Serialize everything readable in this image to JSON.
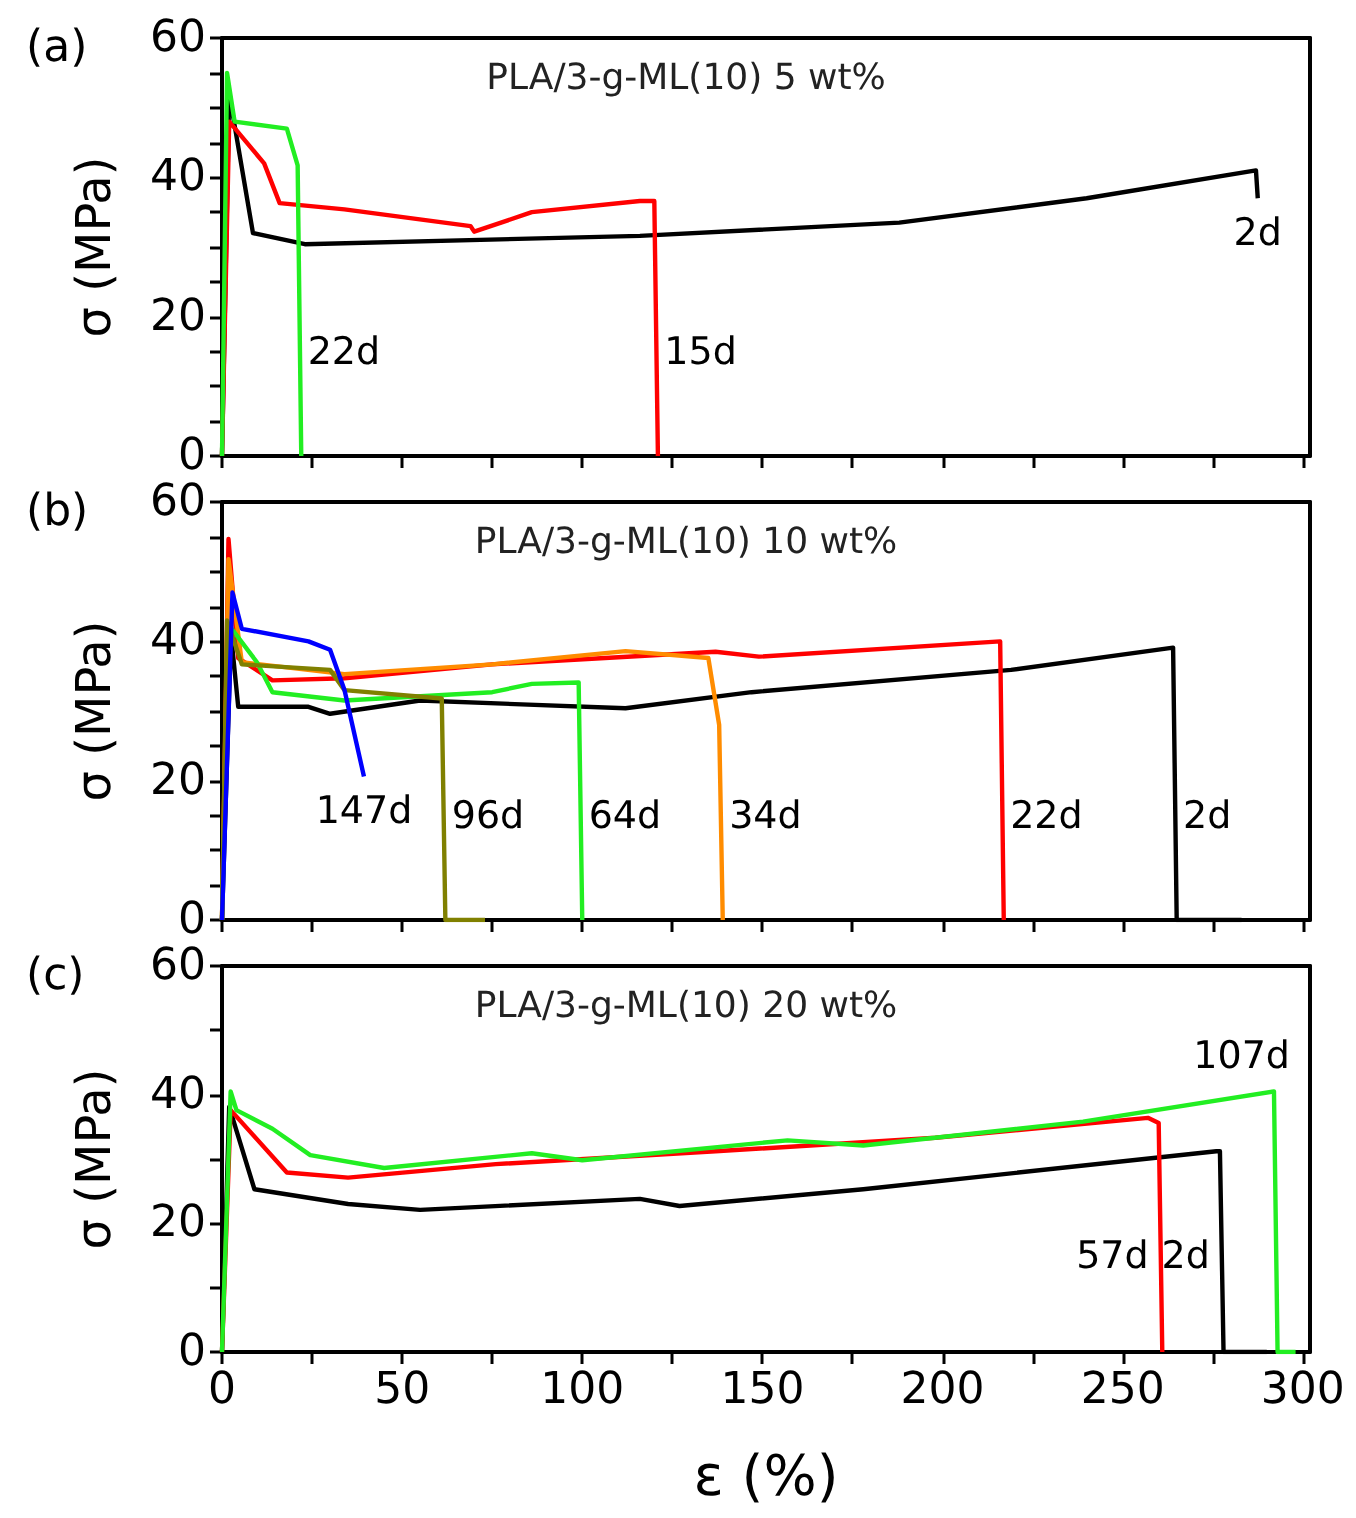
{
  "chart_data": [
    {
      "type": "line",
      "title": "(a)",
      "ylabel": "σ (MPa)",
      "marker": "none",
      "tick_labels": "y",
      "xlim": [
        0,
        302
      ],
      "xticks": [
        0,
        {
          "value": 25,
          "label": null
        },
        50,
        {
          "value": 75,
          "label": null
        },
        100,
        {
          "value": 125,
          "label": null
        },
        150,
        {
          "value": 175,
          "label": null
        },
        200,
        {
          "value": 225,
          "label": null
        },
        250,
        {
          "value": 275,
          "label": null
        },
        300
      ],
      "ylim": [
        0,
        60
      ],
      "yticks": [
        0,
        {
          "value": 5,
          "label": null
        },
        {
          "value": 10,
          "label": null
        },
        {
          "value": 15,
          "label": null
        },
        20,
        {
          "value": 25,
          "label": null
        },
        {
          "value": 30,
          "label": null
        },
        {
          "value": 35,
          "label": null
        },
        40,
        {
          "value": 45,
          "label": null
        },
        {
          "value": 50,
          "label": null
        },
        {
          "value": 55,
          "label": null
        },
        60
      ],
      "annotations": [
        "PLA/3-g-ML(10) 5 wt%"
      ],
      "series": [
        {
          "name": "2d",
          "color": "#000000",
          "x": [
            0,
            2,
            8.6,
            23,
            116,
            188,
            240,
            287,
            287.5
          ],
          "values": [
            0,
            52,
            32,
            30.4,
            31.6,
            33.5,
            37,
            41,
            37
          ]
        },
        {
          "name": "15d",
          "color": "#ff0000",
          "x": [
            0,
            2,
            11.7,
            16,
            34,
            69,
            70,
            86,
            116,
            120,
            121
          ],
          "values": [
            0,
            48,
            42,
            36.3,
            35.4,
            33,
            32.2,
            35,
            36.6,
            36.6,
            0
          ]
        },
        {
          "name": "22d",
          "color": "#22ee22",
          "x": [
            0,
            1.4,
            3.5,
            18,
            21,
            22
          ],
          "values": [
            0,
            55,
            48,
            47,
            41.7,
            0
          ]
        }
      ]
    },
    {
      "type": "line",
      "title": "(b)",
      "ylabel": "σ (MPa)",
      "marker": "none",
      "tick_labels": "y",
      "xlim": [
        0,
        302
      ],
      "xticks": [
        0,
        {
          "value": 25,
          "label": null
        },
        50,
        {
          "value": 75,
          "label": null
        },
        100,
        {
          "value": 125,
          "label": null
        },
        150,
        {
          "value": 175,
          "label": null
        },
        200,
        {
          "value": 225,
          "label": null
        },
        250,
        {
          "value": 275,
          "label": null
        },
        300
      ],
      "ylim": [
        0,
        60
      ],
      "yticks": [
        0,
        {
          "value": 5,
          "label": null
        },
        {
          "value": 10,
          "label": null
        },
        {
          "value": 15,
          "label": null
        },
        20,
        {
          "value": 25,
          "label": null
        },
        {
          "value": 30,
          "label": null
        },
        {
          "value": 35,
          "label": null
        },
        40,
        {
          "value": 45,
          "label": null
        },
        {
          "value": 50,
          "label": null
        },
        {
          "value": 55,
          "label": null
        },
        60
      ],
      "annotations": [
        "PLA/3-g-ML(10) 10 wt%"
      ],
      "series": [
        {
          "name": "2d",
          "color": "#000000",
          "x": [
            0,
            2.5,
            4.5,
            24,
            30,
            55,
            112,
            147,
            219,
            264,
            265,
            283
          ],
          "values": [
            0,
            41,
            30.6,
            30.6,
            29.6,
            31.5,
            30.4,
            32.7,
            35.9,
            39.1,
            0,
            0
          ]
        },
        {
          "name": "22d",
          "color": "#ff0000",
          "x": [
            0,
            1.8,
            4.5,
            14,
            34,
            75,
            137,
            149,
            216,
            217
          ],
          "values": [
            0,
            54.7,
            37.6,
            34.4,
            34.7,
            36.7,
            38.5,
            37.8,
            40,
            0
          ]
        },
        {
          "name": "34d",
          "color": "#ff8c00",
          "x": [
            0,
            1.8,
            5.5,
            34,
            75,
            112,
            135,
            138,
            139
          ],
          "values": [
            0,
            51.8,
            37,
            35.3,
            36.7,
            38.6,
            37.6,
            28,
            0
          ]
        },
        {
          "name": "64d",
          "color": "#22ee22",
          "x": [
            0,
            1.8,
            9.7,
            14,
            34,
            75,
            86,
            99,
            100
          ],
          "values": [
            0,
            42.4,
            37,
            32.7,
            31.5,
            32.7,
            33.9,
            34.1,
            0
          ]
        },
        {
          "name": "96d",
          "color": "#808000",
          "x": [
            0,
            1.4,
            5.5,
            30,
            34,
            61,
            62,
            73
          ],
          "values": [
            0,
            43,
            36.7,
            35.9,
            33,
            31.8,
            0,
            0
          ]
        },
        {
          "name": "147d",
          "color": "#0000ff",
          "x": [
            0,
            2.9,
            5.5,
            24,
            30,
            34,
            39.4
          ],
          "values": [
            0,
            47,
            41.8,
            40,
            38.8,
            33,
            20.6
          ]
        }
      ]
    },
    {
      "type": "line",
      "title": "(c)",
      "ylabel": "σ (MPa)",
      "xlabel": "ε (%)",
      "marker": "none",
      "xlim": [
        0,
        302
      ],
      "xticks": [
        0,
        {
          "value": 25,
          "label": null
        },
        50,
        {
          "value": 75,
          "label": null
        },
        100,
        {
          "value": 125,
          "label": null
        },
        150,
        {
          "value": 175,
          "label": null
        },
        200,
        {
          "value": 225,
          "label": null
        },
        250,
        {
          "value": 275,
          "label": null
        },
        300
      ],
      "ylim": [
        0,
        60
      ],
      "yticks": [
        0,
        {
          "value": 10,
          "label": null
        },
        20,
        {
          "value": 30,
          "label": null
        },
        40,
        {
          "value": 50,
          "label": null
        },
        60
      ],
      "annotations": [
        "PLA/3-g-ML(10) 20 wt%"
      ],
      "series": [
        {
          "name": "2d",
          "color": "#000000",
          "x": [
            0,
            2,
            9,
            35,
            55,
            116,
            127,
            178,
            276,
            277,
            278,
            290
          ],
          "values": [
            0,
            38.1,
            25.3,
            23,
            22.1,
            23.8,
            22.7,
            25.3,
            31.2,
            31.2,
            0,
            0
          ]
        },
        {
          "name": "57d",
          "color": "#ff0000",
          "x": [
            0,
            2.4,
            18,
            35,
            76,
            137,
            198,
            257,
            260,
            261
          ],
          "values": [
            0,
            37.6,
            27.9,
            27.1,
            29.2,
            31.2,
            33.3,
            36.4,
            35.6,
            0
          ]
        },
        {
          "name": "107d",
          "color": "#22ee22",
          "x": [
            0,
            2.4,
            4,
            14,
            24.5,
            45,
            86,
            100,
            157,
            178,
            239,
            292,
            293,
            298
          ],
          "values": [
            0,
            40.5,
            37.6,
            34.7,
            30.6,
            28.6,
            30.9,
            29.8,
            32.9,
            32.1,
            35.8,
            40.5,
            0,
            0
          ]
        }
      ]
    }
  ]
}
